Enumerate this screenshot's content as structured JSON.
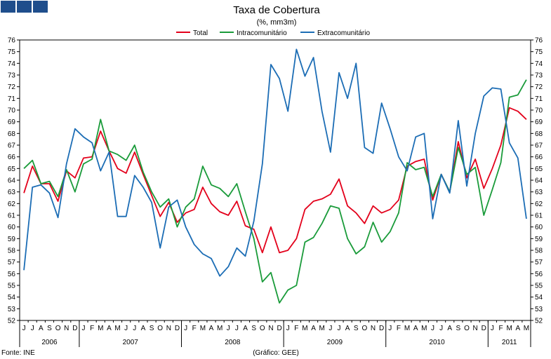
{
  "header": {
    "logo_name": "ine-logo-blocks"
  },
  "chart_data": {
    "type": "line",
    "title": "Taxa de Cobertura",
    "subtitle": "(%, mm3m)",
    "ylim": [
      52,
      76
    ],
    "y_ticks": [
      52,
      53,
      54,
      55,
      56,
      57,
      58,
      59,
      60,
      61,
      62,
      63,
      64,
      65,
      66,
      67,
      68,
      69,
      70,
      71,
      72,
      73,
      74,
      75,
      76
    ],
    "month_labels": [
      "J",
      "J",
      "A",
      "S",
      "O",
      "N",
      "D",
      "J",
      "F",
      "M",
      "A",
      "M",
      "J",
      "J",
      "A",
      "S",
      "O",
      "N",
      "D",
      "J",
      "F",
      "M",
      "A",
      "M",
      "J",
      "J",
      "A",
      "S",
      "O",
      "N",
      "D",
      "J",
      "F",
      "M",
      "A",
      "M",
      "J",
      "J",
      "A",
      "S",
      "O",
      "N",
      "D",
      "J",
      "F",
      "M",
      "A",
      "M",
      "J",
      "J",
      "A",
      "S",
      "O",
      "N",
      "D",
      "J",
      "F",
      "M",
      "A",
      "M"
    ],
    "years": [
      {
        "label": "2006",
        "start": 0,
        "end": 7
      },
      {
        "label": "2007",
        "start": 7,
        "end": 19
      },
      {
        "label": "2008",
        "start": 19,
        "end": 31
      },
      {
        "label": "2009",
        "start": 31,
        "end": 43
      },
      {
        "label": "2010",
        "start": 43,
        "end": 55
      },
      {
        "label": "2011",
        "start": 55,
        "end": 60
      }
    ],
    "legend_position": "top-center",
    "grid": false,
    "series": [
      {
        "name": "Total",
        "color": "#e3001b",
        "values": [
          62.9,
          65.2,
          63.7,
          63.7,
          62.2,
          64.8,
          64.2,
          65.9,
          66.0,
          68.2,
          66.5,
          65.0,
          64.6,
          66.4,
          64.5,
          62.7,
          60.9,
          62.1,
          60.4,
          61.2,
          61.5,
          63.4,
          62.0,
          61.3,
          61.0,
          62.2,
          60.1,
          59.8,
          57.8,
          60.0,
          57.8,
          58.0,
          59.0,
          61.5,
          62.2,
          62.4,
          62.8,
          64.1,
          61.8,
          61.2,
          60.3,
          61.8,
          61.2,
          61.5,
          62.3,
          65.2,
          65.6,
          65.8,
          62.3,
          64.5,
          63.0,
          67.3,
          64.2,
          65.8,
          63.3,
          65.0,
          67.0,
          70.2,
          69.9,
          69.2
        ]
      },
      {
        "name": "Intracomunitário",
        "color": "#1a9b3a",
        "values": [
          65.0,
          65.7,
          63.7,
          63.9,
          62.6,
          64.9,
          63.0,
          65.4,
          65.8,
          69.2,
          66.5,
          66.2,
          65.7,
          67.0,
          64.7,
          63.0,
          61.7,
          62.4,
          60.0,
          61.7,
          62.4,
          65.2,
          63.6,
          63.3,
          62.6,
          63.7,
          61.3,
          59.0,
          55.3,
          56.1,
          53.5,
          54.6,
          55.0,
          58.7,
          59.1,
          60.3,
          61.8,
          61.6,
          59.0,
          57.7,
          58.3,
          60.4,
          58.7,
          59.6,
          61.2,
          65.5,
          64.9,
          65.1,
          62.6,
          64.5,
          63.0,
          66.8,
          64.5,
          65.1,
          61.0,
          63.2,
          65.5,
          71.1,
          71.3,
          72.6
        ]
      },
      {
        "name": "Extracomunitário",
        "color": "#1c6db5",
        "values": [
          56.3,
          63.4,
          63.6,
          62.9,
          60.8,
          65.4,
          68.4,
          67.7,
          67.2,
          64.8,
          66.4,
          60.9,
          60.9,
          64.4,
          63.4,
          62.1,
          58.2,
          61.7,
          62.3,
          60.0,
          58.5,
          57.7,
          57.3,
          55.8,
          56.6,
          58.2,
          57.5,
          60.5,
          65.4,
          73.9,
          72.7,
          69.9,
          75.2,
          72.9,
          74.5,
          69.9,
          66.4,
          73.2,
          71.0,
          74.0,
          66.8,
          66.3,
          70.6,
          68.4,
          66.0,
          64.8,
          67.7,
          68.0,
          60.7,
          64.5,
          62.9,
          69.1,
          63.5,
          68.0,
          71.2,
          71.9,
          71.8,
          67.2,
          65.9,
          60.7
        ]
      }
    ]
  },
  "footer": {
    "source": "Fonte: INE",
    "credit": "(Gráfico: GEE)"
  }
}
